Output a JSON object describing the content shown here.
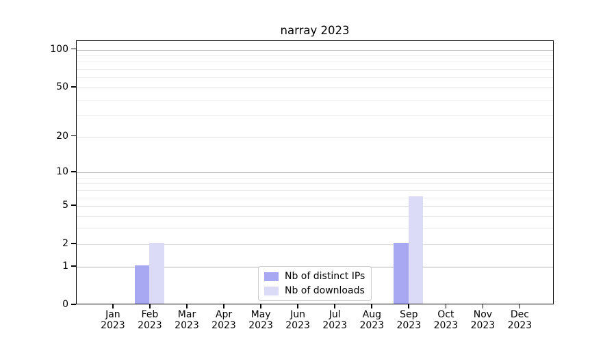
{
  "chart_data": {
    "type": "bar",
    "title": "narray 2023",
    "categories": [
      "Jan",
      "Feb",
      "Mar",
      "Apr",
      "May",
      "Jun",
      "Jul",
      "Aug",
      "Sep",
      "Oct",
      "Nov",
      "Dec"
    ],
    "year_label": "2023",
    "series": [
      {
        "name": "Nb of distinct IPs",
        "color": "#a8a8f2",
        "values": [
          0,
          1,
          0,
          0,
          0,
          0,
          0,
          0,
          2,
          0,
          0,
          0
        ]
      },
      {
        "name": "Nb of downloads",
        "color": "#dbdbf8",
        "values": [
          0,
          2,
          0,
          0,
          0,
          0,
          0,
          0,
          6,
          0,
          0,
          0
        ]
      }
    ],
    "yscale": "log1p",
    "yticks": [
      0,
      1,
      2,
      5,
      10,
      20,
      50,
      100
    ],
    "strong_yticks": [
      1,
      10,
      100
    ],
    "minor_yticks": [
      3,
      4,
      6,
      7,
      8,
      9,
      30,
      40,
      60,
      70,
      80,
      90
    ],
    "ylim": [
      0,
      117
    ],
    "xlabel": "",
    "ylabel": "",
    "grid": true,
    "legend_position": "lower-center"
  },
  "colors": {
    "background": "#ffffff",
    "axis": "#000000",
    "grid_strong": "#b0b0b0",
    "grid_weak": "#dcdcdc",
    "grid_minor": "#eeeeee",
    "bar_distinct_ips": "#a8a8f2",
    "bar_downloads": "#dbdbf8",
    "legend_border": "#cccccc"
  }
}
